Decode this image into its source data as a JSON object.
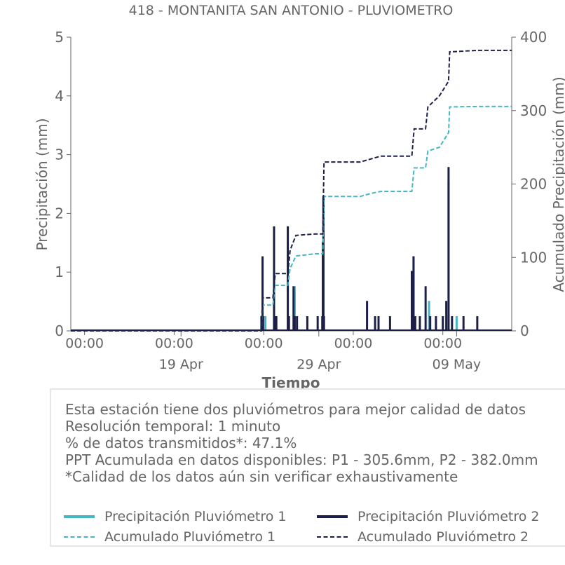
{
  "chart_data": {
    "type": "line",
    "title": "418 - MONTANITA SAN ANTONIO - PLUVIOMETRO",
    "xlabel": "Tiempo",
    "ylabel": "Precipitación (mm)",
    "y2label": "Acumulado Precipitación (mm)",
    "ylim": [
      0,
      5
    ],
    "y2lim": [
      0,
      400
    ],
    "yticks": [
      "0",
      "1",
      "2",
      "3",
      "4",
      "5"
    ],
    "y2ticks": [
      "0",
      "100",
      "200",
      "300",
      "400"
    ],
    "x_range": [
      "2024-04-11T00:00",
      "2024-05-13T00:00"
    ],
    "x_minor_ticks": [
      "00:00",
      "00:00",
      "00:00",
      "00:00",
      "00:00"
    ],
    "x_minor_tick_dates": [
      "2024-04-12T00:00",
      "2024-04-18T12:00",
      "2024-04-25T00:00",
      "2024-05-01T12:00",
      "2024-05-08T00:00"
    ],
    "x_major_ticks": [
      "19 Apr",
      "29 Apr",
      "09 May"
    ],
    "x_major_tick_dates": [
      "2024-04-19T00:00",
      "2024-04-29T00:00",
      "2024-05-09T00:00"
    ],
    "grid": false,
    "legend_position": "bottom",
    "series": [
      {
        "name": "Precipitación Pluviómetro 1",
        "axis": "left",
        "style": "solid",
        "color": "#45b7c4",
        "kind": "spikes",
        "x": [
          "2024-04-24T21:00",
          "2024-04-25T03:00",
          "2024-04-25T18:00",
          "2024-04-26T18:00",
          "2024-04-27T06:00",
          "2024-04-29T08:00",
          "2024-05-05T21:00",
          "2024-05-07T00:00",
          "2024-05-08T10:00",
          "2024-05-09T00:00"
        ],
        "values": [
          0.25,
          0.25,
          1.02,
          1.78,
          0.76,
          2.29,
          1.27,
          0.51,
          2.54,
          0.25
        ]
      },
      {
        "name": "Precipitación Pluviómetro 2",
        "axis": "left",
        "style": "solid",
        "color": "#1c1f47",
        "kind": "spikes",
        "x": [
          "2024-04-24T20:00",
          "2024-04-24T22:00",
          "2024-04-24T23:00",
          "2024-04-25T18:00",
          "2024-04-25T20:00",
          "2024-04-25T22:00",
          "2024-04-26T18:00",
          "2024-04-26T20:00",
          "2024-04-27T04:00",
          "2024-04-27T06:00",
          "2024-04-27T10:00",
          "2024-04-28T04:00",
          "2024-04-28T22:00",
          "2024-04-29T06:00",
          "2024-04-29T07:00",
          "2024-04-29T08:00",
          "2024-04-29T09:00",
          "2024-05-02T12:00",
          "2024-05-03T02:00",
          "2024-05-03T08:00",
          "2024-05-04T04:00",
          "2024-05-05T18:00",
          "2024-05-05T21:00",
          "2024-05-06T00:00",
          "2024-05-06T08:00",
          "2024-05-06T18:00",
          "2024-05-07T02:00",
          "2024-05-07T12:00",
          "2024-05-08T00:00",
          "2024-05-08T06:00",
          "2024-05-08T10:00",
          "2024-05-08T16:00",
          "2024-05-09T12:00",
          "2024-05-10T12:00"
        ],
        "values": [
          0.25,
          1.27,
          0.25,
          1.78,
          0.25,
          0.25,
          1.78,
          0.25,
          0.76,
          0.25,
          0.25,
          0.25,
          0.25,
          0.25,
          1.52,
          2.29,
          0.25,
          0.51,
          0.25,
          0.25,
          0.25,
          1.02,
          1.27,
          0.25,
          0.25,
          0.76,
          0.25,
          0.25,
          0.25,
          0.51,
          2.79,
          0.25,
          0.25,
          0.25
        ]
      },
      {
        "name": "Acumulado Pluviómetro 1",
        "axis": "right",
        "style": "dashed",
        "color": "#45b7c4",
        "x": [
          "2024-04-11T00:00",
          "2024-04-24T20:00",
          "2024-04-24T22:00",
          "2024-04-25T16:00",
          "2024-04-25T20:00",
          "2024-04-26T18:00",
          "2024-04-26T22:00",
          "2024-04-27T08:00",
          "2024-04-28T18:00",
          "2024-04-29T07:00",
          "2024-04-29T09:00",
          "2024-05-02T00:00",
          "2024-05-02T18:00",
          "2024-05-03T12:00",
          "2024-05-05T18:00",
          "2024-05-05T22:00",
          "2024-05-06T18:00",
          "2024-05-06T22:00",
          "2024-05-07T18:00",
          "2024-05-08T10:00",
          "2024-05-08T12:00",
          "2024-05-10T12:00",
          "2024-05-13T00:00"
        ],
        "values": [
          0,
          0,
          35,
          35,
          62,
          62,
          85,
          102,
          105,
          105,
          183,
          183,
          187,
          190,
          190,
          222,
          222,
          245,
          250,
          270,
          305,
          305.6,
          305.6
        ]
      },
      {
        "name": "Acumulado Pluviómetro 2",
        "axis": "right",
        "style": "dashed",
        "color": "#1c1f47",
        "x": [
          "2024-04-11T00:00",
          "2024-04-24T20:00",
          "2024-04-24T22:00",
          "2024-04-25T16:00",
          "2024-04-25T20:00",
          "2024-04-26T18:00",
          "2024-04-26T22:00",
          "2024-04-27T08:00",
          "2024-04-28T18:00",
          "2024-04-29T07:00",
          "2024-04-29T09:00",
          "2024-05-02T00:00",
          "2024-05-02T18:00",
          "2024-05-03T12:00",
          "2024-05-05T18:00",
          "2024-05-05T22:00",
          "2024-05-06T18:00",
          "2024-05-06T22:00",
          "2024-05-07T18:00",
          "2024-05-08T10:00",
          "2024-05-08T12:00",
          "2024-05-10T12:00",
          "2024-05-13T00:00"
        ],
        "values": [
          0,
          0,
          45,
          45,
          78,
          78,
          110,
          130,
          132,
          132,
          230,
          230,
          234,
          238,
          238,
          275,
          275,
          305,
          320,
          340,
          380,
          382,
          382
        ]
      }
    ]
  },
  "info": {
    "lines": [
      "Esta estación tiene dos pluviómetros para mejor calidad de datos",
      "Resolución temporal: 1 minuto",
      "% de datos transmitidos*: 47.1%",
      "PPT Acumulada en datos disponibles: P1 - 305.6mm, P2 - 382.0mm",
      "*Calidad de los datos aún sin verificar exhaustivamente"
    ]
  },
  "legend": {
    "items": [
      {
        "label": "Precipitación Pluviómetro 1",
        "color": "#45b7c4",
        "style": "solid"
      },
      {
        "label": "Precipitación Pluviómetro 2",
        "color": "#1c1f47",
        "style": "solid"
      },
      {
        "label": "Acumulado Pluviómetro 1",
        "color": "#45b7c4",
        "style": "dashed"
      },
      {
        "label": "Acumulado Pluviómetro 2",
        "color": "#1c1f47",
        "style": "dashed"
      }
    ]
  }
}
